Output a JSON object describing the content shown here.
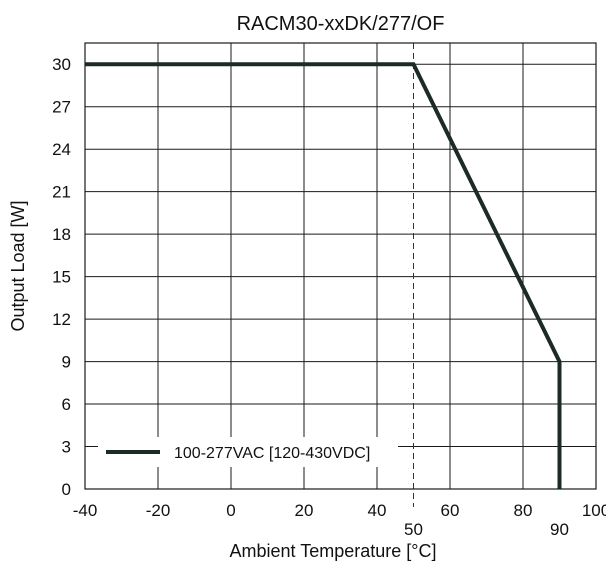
{
  "chart_data": {
    "type": "line",
    "title": "RACM30-xxDK/277/OF",
    "xlabel": "Ambient Temperature [°C]",
    "ylabel": "Output Load [W]",
    "xlim": [
      -40,
      100
    ],
    "ylim": [
      0,
      31.5
    ],
    "xticks": [
      -40,
      -20,
      0,
      20,
      40,
      60,
      80,
      100
    ],
    "yticks": [
      0,
      3,
      6,
      9,
      12,
      15,
      18,
      21,
      24,
      27,
      30
    ],
    "x_grid_lines": [
      -20,
      0,
      20,
      40,
      60,
      80
    ],
    "annotated_x": [
      {
        "x": 50,
        "label": "50",
        "style": "dashed"
      },
      {
        "x": 90,
        "label": "90",
        "style": "none"
      }
    ],
    "grid": true,
    "legend_position": "bottom-left",
    "series": [
      {
        "name": "100-277VAC [120-430VDC]",
        "color": "#1c2b24",
        "points": [
          [
            -40,
            30
          ],
          [
            50,
            30
          ],
          [
            90,
            9
          ],
          [
            90,
            0
          ]
        ]
      }
    ]
  }
}
